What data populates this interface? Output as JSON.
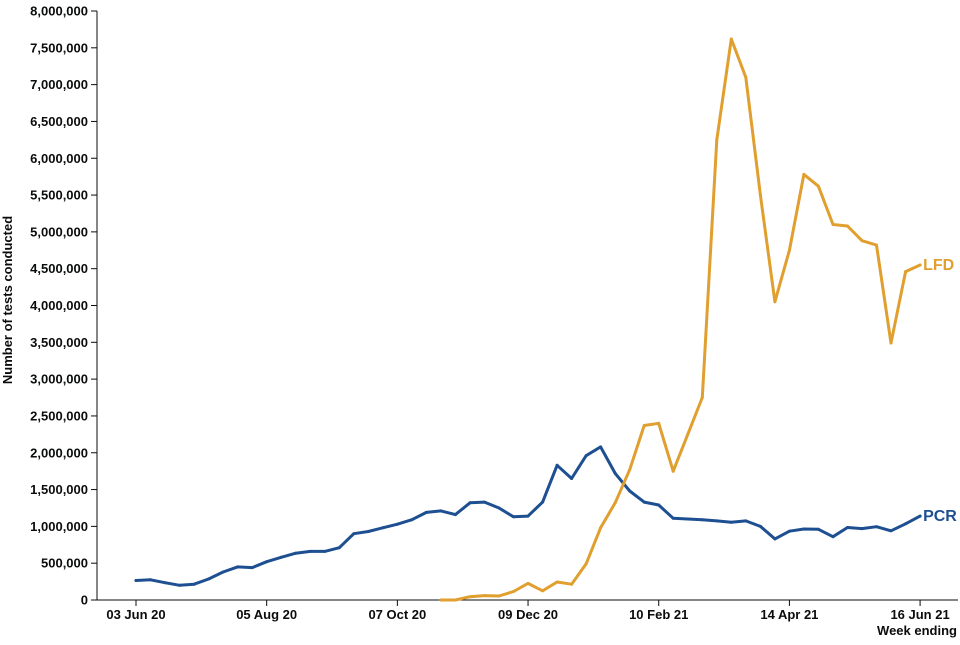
{
  "chart_data": {
    "type": "line",
    "ylabel": "Number of tests conducted",
    "xlabel": "Week ending",
    "ylim": [
      0,
      8000000
    ],
    "yticks": [
      "0",
      "500,000",
      "1,000,000",
      "1,500,000",
      "2,000,000",
      "2,500,000",
      "3,000,000",
      "3,500,000",
      "4,000,000",
      "4,500,000",
      "5,000,000",
      "5,500,000",
      "6,000,000",
      "6,500,000",
      "7,000,000",
      "7,500,000",
      "8,000,000"
    ],
    "ytick_values": [
      0,
      500000,
      1000000,
      1500000,
      2000000,
      2500000,
      3000000,
      3500000,
      4000000,
      4500000,
      5000000,
      5500000,
      6000000,
      6500000,
      7000000,
      7500000,
      8000000
    ],
    "xticks": [
      "03 Jun 20",
      "05 Aug 20",
      "07 Oct 20",
      "09 Dec 20",
      "10 Feb 21",
      "14 Apr 21",
      "16 Jun 21"
    ],
    "xtick_weeks": [
      0,
      9,
      18,
      27,
      36,
      45,
      54
    ],
    "grid": false,
    "series": [
      {
        "name": "PCR",
        "color": "#1d4f91",
        "start_week": 0,
        "values": [
          265000,
          275000,
          235000,
          200000,
          215000,
          285000,
          380000,
          450000,
          440000,
          520000,
          580000,
          635000,
          660000,
          660000,
          710000,
          900000,
          930000,
          980000,
          1030000,
          1090000,
          1190000,
          1210000,
          1160000,
          1320000,
          1330000,
          1250000,
          1130000,
          1140000,
          1330000,
          1830000,
          1650000,
          1960000,
          2080000,
          1720000,
          1480000,
          1330000,
          1290000,
          1110000,
          1100000,
          1090000,
          1075000,
          1055000,
          1075000,
          1000000,
          830000,
          935000,
          965000,
          960000,
          860000,
          985000,
          970000,
          995000,
          940000,
          1035000,
          1140000
        ]
      },
      {
        "name": "LFD",
        "color": "#e09f2e",
        "start_week": 21,
        "values": [
          0,
          0,
          45000,
          60000,
          55000,
          115000,
          225000,
          125000,
          245000,
          215000,
          490000,
          980000,
          1320000,
          1770000,
          2370000,
          2400000,
          1750000,
          2250000,
          2750000,
          6250000,
          7620000,
          7100000,
          5500000,
          4050000,
          4750000,
          5780000,
          5620000,
          5100000,
          5080000,
          4880000,
          4820000,
          3490000,
          4460000,
          4550000
        ]
      }
    ]
  }
}
